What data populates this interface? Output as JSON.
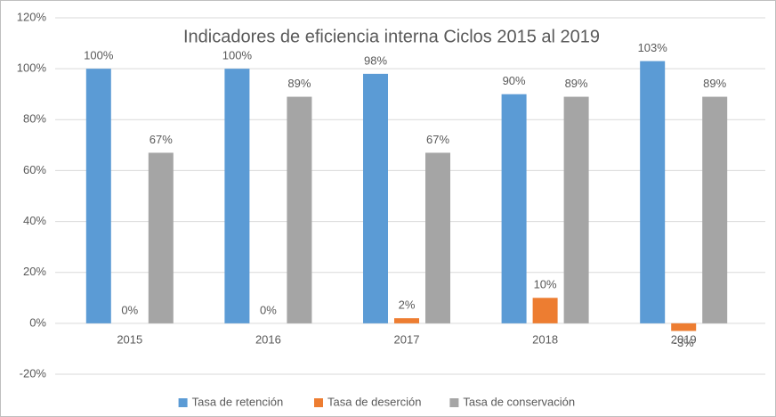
{
  "chart_data": {
    "type": "bar",
    "title": "Indicadores de eficiencia interna Ciclos 2015 al 2019",
    "categories": [
      "2015",
      "2016",
      "2017",
      "2018",
      "2019"
    ],
    "series": [
      {
        "name": "Tasa de retención",
        "color": "#5b9bd5",
        "values": [
          100,
          100,
          98,
          90,
          103
        ],
        "value_labels": [
          "100%",
          "100%",
          "98%",
          "90%",
          "103%"
        ]
      },
      {
        "name": "Tasa de deserción",
        "color": "#ed7d31",
        "values": [
          0,
          0,
          2,
          10,
          -3
        ],
        "value_labels": [
          "0%",
          "0%",
          "2%",
          "10%",
          "-3%"
        ]
      },
      {
        "name": "Tasa de conservación",
        "color": "#a5a5a5",
        "values": [
          67,
          89,
          67,
          89,
          89
        ],
        "value_labels": [
          "67%",
          "89%",
          "67%",
          "89%",
          "89%"
        ]
      }
    ],
    "ylim": [
      -20,
      120
    ],
    "yticks": [
      {
        "value": -20,
        "label": "-20%"
      },
      {
        "value": 0,
        "label": "0%"
      },
      {
        "value": 20,
        "label": "20%"
      },
      {
        "value": 40,
        "label": "40%"
      },
      {
        "value": 60,
        "label": "60%"
      },
      {
        "value": 80,
        "label": "80%"
      },
      {
        "value": 100,
        "label": "100%"
      },
      {
        "value": 120,
        "label": "120%"
      }
    ],
    "grid": true,
    "legend": "bottom"
  }
}
